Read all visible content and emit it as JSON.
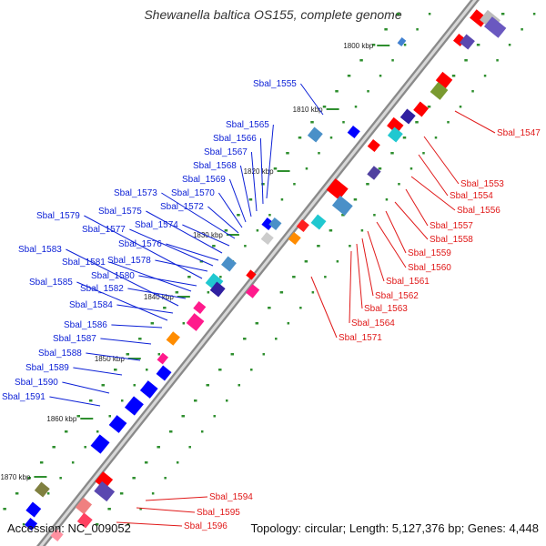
{
  "title": "Shewanella baltica OS155, complete genome",
  "footer": {
    "accession": "Accession: NC_009052",
    "info": "Topology: circular; Length: 5,127,376 bp; Genes: 4,448"
  },
  "colors": {
    "left_labels": "#0b1fd6",
    "right_labels": "#e01818",
    "backbone": "#8c8c8c",
    "dots": "#2f8f2f"
  },
  "ticks": [
    "1800 kbp",
    "1810 kbp",
    "1820 kbp",
    "1830 kbp",
    "1840 kbp",
    "1850 kbp",
    "1860 kbp",
    "1870 kbp"
  ],
  "left_labels": [
    "Sbal_1555",
    "Sbal_1565",
    "Sbal_1566",
    "Sbal_1567",
    "Sbal_1568",
    "Sbal_1569",
    "Sbal_1570",
    "Sbal_1572",
    "Sbal_1573",
    "Sbal_1574",
    "Sbal_1575",
    "Sbal_1576",
    "Sbal_1577",
    "Sbal_1578",
    "Sbal_1579",
    "Sbal_1580",
    "Sbal_1581",
    "Sbal_1582",
    "Sbal_1583",
    "Sbal_1584",
    "Sbal_1585",
    "Sbal_1586",
    "Sbal_1587",
    "Sbal_1588",
    "Sbal_1589",
    "Sbal_1590",
    "Sbal_1591"
  ],
  "right_labels": [
    "Sbal_1547",
    "Sbal_1553",
    "Sbal_1554",
    "Sbal_1556",
    "Sbal_1557",
    "Sbal_1558",
    "Sbal_1559",
    "Sbal_1560",
    "Sbal_1561",
    "Sbal_1562",
    "Sbal_1563",
    "Sbal_1564",
    "Sbal_1571",
    "Sbal_1594",
    "Sbal_1595",
    "Sbal_1596"
  ]
}
